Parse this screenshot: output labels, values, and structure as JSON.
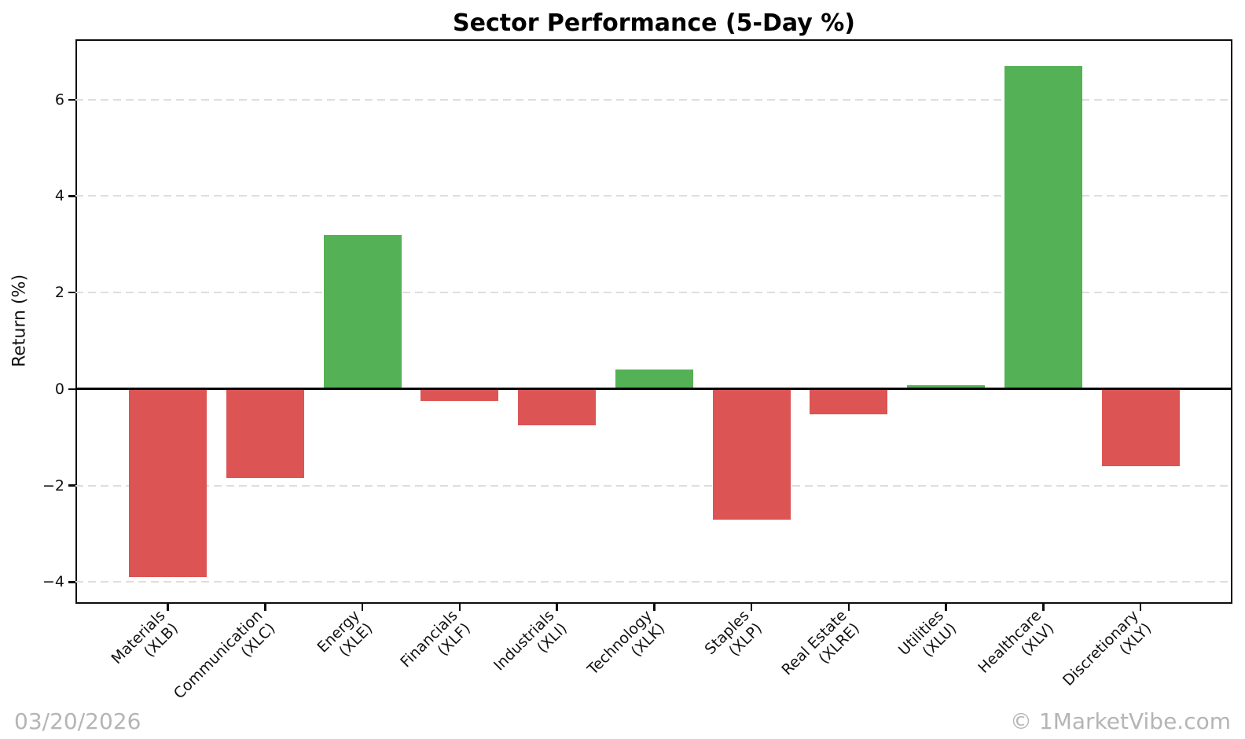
{
  "header": {
    "title": "Sector Performance (5-Day %)"
  },
  "footer": {
    "date": "03/20/2026",
    "watermark": "© 1MarketVibe.com"
  },
  "chart_data": {
    "type": "bar",
    "title": "Sector Performance (5-Day %)",
    "xlabel": "",
    "ylabel": "Return (%)",
    "categories": [
      "Materials\n(XLB)",
      "Communication\n(XLC)",
      "Energy\n(XLE)",
      "Financials\n(XLF)",
      "Industrials\n(XLI)",
      "Technology\n(XLK)",
      "Staples\n(XLP)",
      "Real Estate\n(XLRE)",
      "Utilities\n(XLU)",
      "Healthcare\n(XLV)",
      "Discretionary\n(XLY)"
    ],
    "values": [
      -3.9,
      -1.85,
      3.2,
      -0.25,
      -0.75,
      0.4,
      -2.7,
      -0.52,
      0.08,
      6.7,
      -1.6
    ],
    "yticks": [
      6,
      4,
      2,
      0,
      -2,
      -4
    ],
    "ylim": [
      -4.45,
      7.25
    ],
    "grid": "horizontal-dashed",
    "legend": "none",
    "bar_width_frac": 0.8,
    "colors": {
      "positive": "#55b155",
      "negative": "#dc5454",
      "grid": "#dedede",
      "axis": "#0d0d0d",
      "zero_line": "#000000",
      "footer_text": "#b5b5b5"
    }
  }
}
